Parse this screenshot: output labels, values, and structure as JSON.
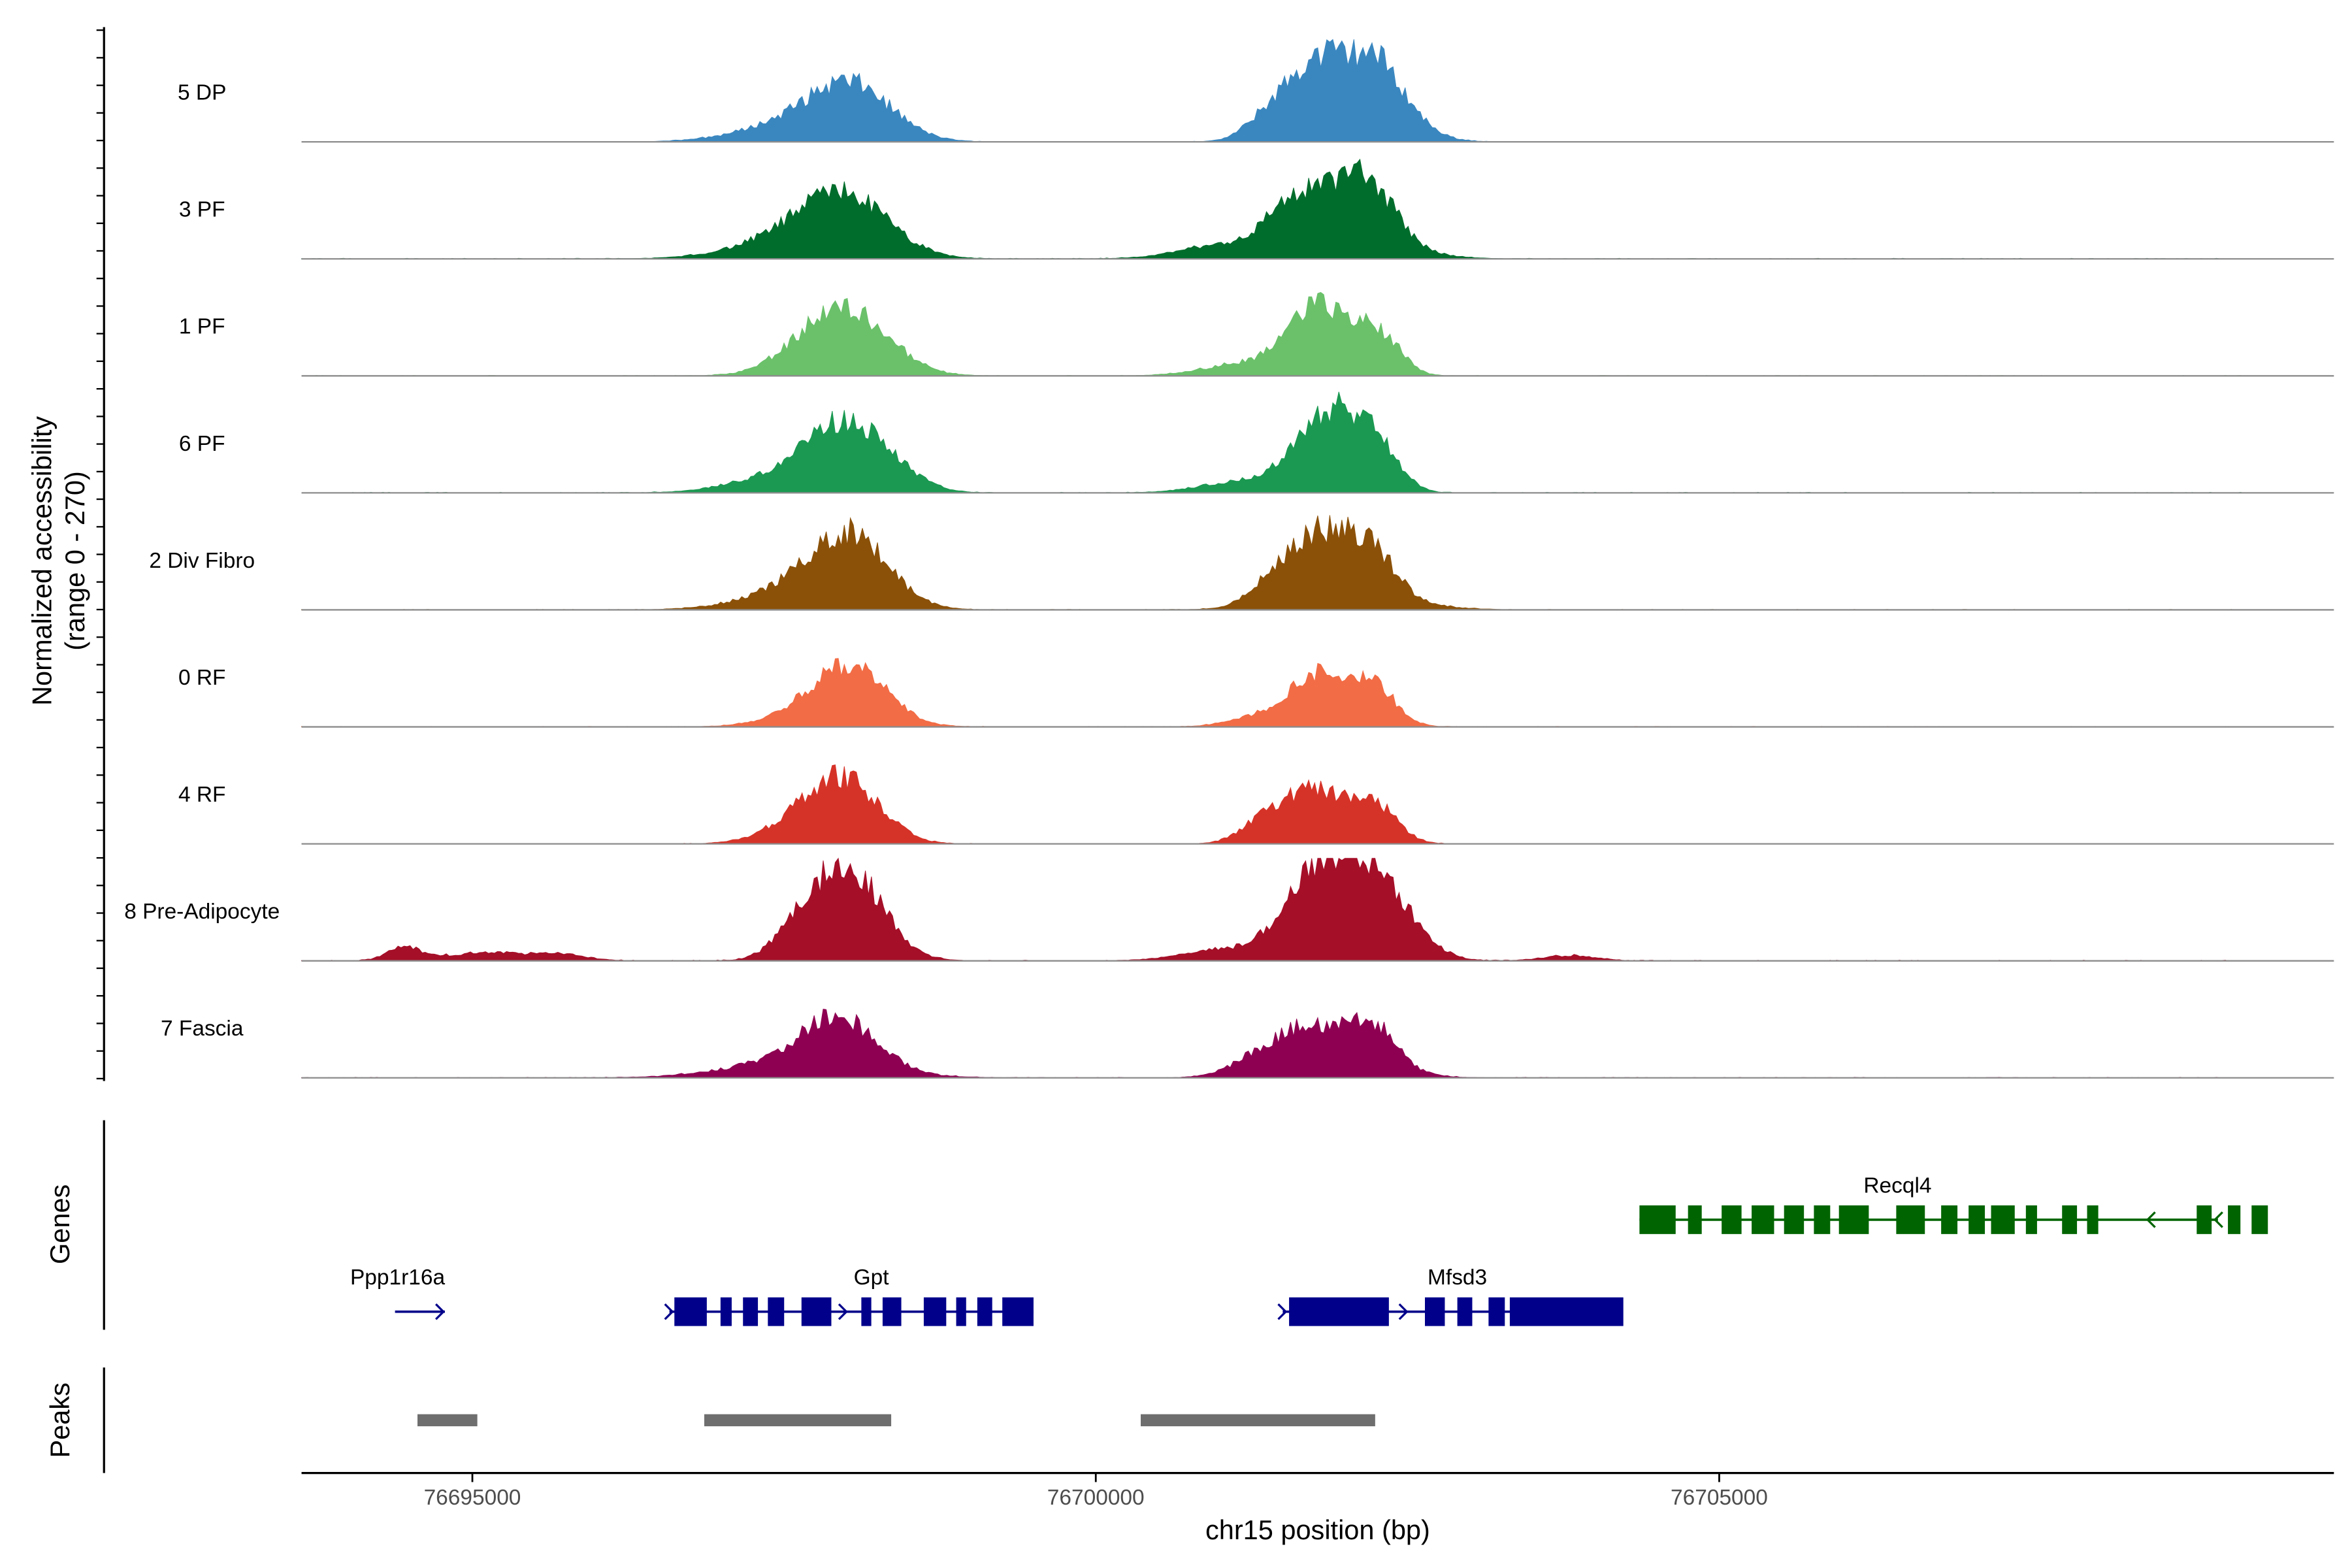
{
  "chart_data": {
    "type": "area",
    "title": "",
    "xlabel": "chr15 position (bp)",
    "ylabel": "Normalized accessibility",
    "ylabel_sub": "(range 0 - 270)",
    "ylim": [
      0,
      270
    ],
    "xlim": [
      76693630,
      76709930
    ],
    "x_ticks": [
      76695000,
      76700000,
      76705000
    ],
    "x_tick_labels": [
      "76695000",
      "76700000",
      "76705000"
    ],
    "tracks": [
      {
        "name": "5 DP",
        "color": "#3a87c0",
        "peaks": [
          [
            76698050,
            110,
            210,
            0.48
          ],
          [
            76697600,
            25,
            400,
            0.18
          ],
          [
            76701400,
            35,
            150,
            0.22
          ],
          [
            76701750,
            65,
            150,
            0.43
          ],
          [
            76701950,
            55,
            260,
            0.35
          ],
          [
            76702250,
            50,
            130,
            0.2
          ],
          [
            76702280,
            110,
            160,
            0.4
          ]
        ],
        "noise": 0.04
      },
      {
        "name": "3 PF",
        "color": "#006d2c",
        "peaks": [
          [
            76698000,
            110,
            230,
            0.52
          ],
          [
            76697600,
            30,
            420,
            0.2
          ],
          [
            76701000,
            30,
            300,
            0.13
          ],
          [
            76701500,
            35,
            130,
            0.22
          ],
          [
            76701800,
            65,
            250,
            0.4
          ],
          [
            76702000,
            40,
            200,
            0.25
          ],
          [
            76702250,
            70,
            130,
            0.32
          ],
          [
            76702200,
            30,
            350,
            0.12
          ]
        ],
        "noise": 0.05
      },
      {
        "name": "1 PF",
        "color": "#6ac16a",
        "peaks": [
          [
            76698050,
            120,
            200,
            0.55
          ],
          [
            76697700,
            40,
            250,
            0.2
          ],
          [
            76701200,
            30,
            300,
            0.12
          ],
          [
            76701600,
            40,
            160,
            0.18
          ],
          [
            76701800,
            65,
            140,
            0.45
          ],
          [
            76702000,
            40,
            200,
            0.15
          ],
          [
            76702150,
            60,
            90,
            0.2
          ],
          [
            76702350,
            55,
            90,
            0.25
          ]
        ],
        "noise": 0.04
      },
      {
        "name": "6 PF",
        "color": "#1b9952",
        "peaks": [
          [
            76698000,
            120,
            170,
            0.55
          ],
          [
            76697600,
            40,
            380,
            0.2
          ],
          [
            76698400,
            40,
            200,
            0.12
          ],
          [
            76701200,
            30,
            300,
            0.12
          ],
          [
            76701700,
            45,
            160,
            0.2
          ],
          [
            76701850,
            65,
            160,
            0.48
          ],
          [
            76702050,
            45,
            160,
            0.22
          ],
          [
            76702250,
            60,
            120,
            0.4
          ]
        ],
        "noise": 0.05
      },
      {
        "name": "2 Div Fibro",
        "color": "#8b5109",
        "peaks": [
          [
            76698050,
            120,
            170,
            0.58
          ],
          [
            76697700,
            45,
            380,
            0.25
          ],
          [
            76701400,
            30,
            150,
            0.12
          ],
          [
            76701750,
            70,
            160,
            0.4
          ],
          [
            76701850,
            55,
            300,
            0.25
          ],
          [
            76702200,
            60,
            130,
            0.36
          ],
          [
            76702100,
            30,
            400,
            0.12
          ]
        ],
        "noise": 0.04
      },
      {
        "name": "0 RF",
        "color": "#f26c45",
        "peaks": [
          [
            76698050,
            115,
            170,
            0.5
          ],
          [
            76697750,
            35,
            300,
            0.15
          ],
          [
            76701300,
            30,
            200,
            0.1
          ],
          [
            76701750,
            55,
            160,
            0.35
          ],
          [
            76701950,
            45,
            200,
            0.22
          ],
          [
            76702250,
            60,
            110,
            0.3
          ]
        ],
        "noise": 0.04
      },
      {
        "name": "4 RF",
        "color": "#d63328",
        "peaks": [
          [
            76698000,
            120,
            160,
            0.55
          ],
          [
            76697650,
            40,
            250,
            0.2
          ],
          [
            76701300,
            30,
            150,
            0.12
          ],
          [
            76701450,
            30,
            150,
            0.15
          ],
          [
            76701750,
            60,
            150,
            0.42
          ],
          [
            76702000,
            40,
            200,
            0.15
          ],
          [
            76702250,
            55,
            120,
            0.3
          ]
        ],
        "noise": 0.04
      },
      {
        "name": "8 Pre-Adipocyte",
        "color": "#a50f28",
        "peaks": [
          [
            76698000,
            130,
            150,
            0.92
          ],
          [
            76697600,
            40,
            150,
            0.18
          ],
          [
            76694450,
            10,
            120,
            0.13
          ],
          [
            76695100,
            8,
            300,
            0.08
          ],
          [
            76695700,
            6,
            200,
            0.06
          ],
          [
            76701000,
            20,
            300,
            0.1
          ],
          [
            76701750,
            70,
            200,
            0.58
          ],
          [
            76702000,
            55,
            250,
            0.5
          ],
          [
            76702250,
            40,
            160,
            0.3
          ],
          [
            76702450,
            30,
            180,
            0.22
          ],
          [
            76702600,
            10,
            200,
            0.05
          ],
          [
            76703800,
            5,
            200,
            0.05
          ]
        ],
        "noise": 0.06
      },
      {
        "name": "7 Fascia",
        "color": "#8e0152",
        "peaks": [
          [
            76697950,
            115,
            170,
            0.45
          ],
          [
            76697650,
            30,
            500,
            0.18
          ],
          [
            76701300,
            35,
            180,
            0.15
          ],
          [
            76701700,
            60,
            180,
            0.3
          ],
          [
            76701900,
            45,
            350,
            0.2
          ],
          [
            76702200,
            65,
            130,
            0.4
          ]
        ],
        "noise": 0.05
      }
    ],
    "genes": [
      {
        "name": "Ppp1r16a",
        "color": "#00008b",
        "strand": "+",
        "row": 1,
        "start": 76694380,
        "end": 76694780,
        "exons": [],
        "label_pos": 76694400
      },
      {
        "name": "Gpt",
        "color": "#00008b",
        "strand": "+",
        "row": 1,
        "start": 76696580,
        "end": 76699500,
        "exons": [
          [
            76696620,
            76696880
          ],
          [
            76696990,
            76697080
          ],
          [
            76697170,
            76697290
          ],
          [
            76697370,
            76697500
          ],
          [
            76697640,
            76697880
          ],
          [
            76698120,
            76698200
          ],
          [
            76698290,
            76698440
          ],
          [
            76698620,
            76698800
          ],
          [
            76698880,
            76698960
          ],
          [
            76699050,
            76699170
          ],
          [
            76699250,
            76699500
          ]
        ],
        "label_pos": 76698200
      },
      {
        "name": "Mfsd3",
        "color": "#00008b",
        "strand": "+",
        "row": 1,
        "start": 76701500,
        "end": 76704230,
        "exons": [
          [
            76701550,
            76702350
          ],
          [
            76702640,
            76702800
          ],
          [
            76702900,
            76703020
          ],
          [
            76703150,
            76703280
          ],
          [
            76703320,
            76704230
          ]
        ],
        "label_pos": 76702900
      },
      {
        "name": "Recql4",
        "color": "#006400",
        "strand": "-",
        "row": 0,
        "start": 76704360,
        "end": 76709000,
        "exons": [
          [
            76704360,
            76704650
          ],
          [
            76704750,
            76704860
          ],
          [
            76705020,
            76705180
          ],
          [
            76705260,
            76705440
          ],
          [
            76705520,
            76705680
          ],
          [
            76705760,
            76705890
          ],
          [
            76705960,
            76706200
          ],
          [
            76706420,
            76706650
          ],
          [
            76706780,
            76706910
          ],
          [
            76707000,
            76707130
          ],
          [
            76707180,
            76707370
          ],
          [
            76707460,
            76707550
          ],
          [
            76707750,
            76707870
          ],
          [
            76707950,
            76708040
          ],
          [
            76708830,
            76708950
          ],
          [
            76709080,
            76709180
          ],
          [
            76709270,
            76709400
          ]
        ],
        "label_pos": 76706430
      }
    ],
    "peaks_track": [
      [
        76694560,
        76695040
      ],
      [
        76696860,
        76698360
      ],
      [
        76700360,
        76702240
      ]
    ],
    "panel_labels": {
      "genes": "Genes",
      "peaks": "Peaks"
    }
  }
}
